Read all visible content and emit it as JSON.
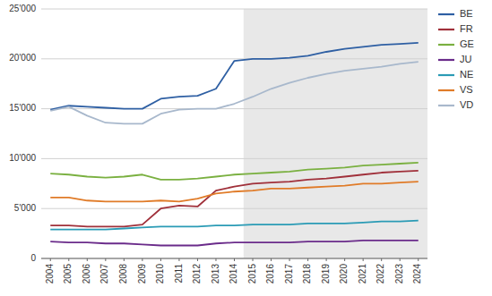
{
  "chart_data": {
    "type": "line",
    "x": [
      2004,
      2005,
      2006,
      2007,
      2008,
      2009,
      2010,
      2011,
      2012,
      2013,
      2014,
      2015,
      2016,
      2017,
      2018,
      2019,
      2020,
      2021,
      2022,
      2023,
      2024
    ],
    "series": [
      {
        "name": "BE",
        "color": "#2e5fa3",
        "values": [
          14900,
          15300,
          15200,
          15100,
          15000,
          15000,
          16000,
          16200,
          16300,
          17000,
          19800,
          20000,
          20000,
          20100,
          20300,
          20700,
          21000,
          21200,
          21400,
          21500,
          21600
        ]
      },
      {
        "name": "FR",
        "color": "#a0303a",
        "values": [
          3300,
          3300,
          3200,
          3200,
          3200,
          3400,
          5000,
          5300,
          5200,
          6800,
          7200,
          7500,
          7600,
          7700,
          7900,
          8000,
          8200,
          8400,
          8600,
          8700,
          8800
        ]
      },
      {
        "name": "GE",
        "color": "#7ab040",
        "values": [
          8500,
          8400,
          8200,
          8100,
          8200,
          8400,
          7900,
          7900,
          8000,
          8200,
          8400,
          8500,
          8600,
          8700,
          8900,
          9000,
          9100,
          9300,
          9400,
          9500,
          9600
        ]
      },
      {
        "name": "JU",
        "color": "#6a2b8a",
        "values": [
          1700,
          1600,
          1600,
          1500,
          1500,
          1400,
          1300,
          1300,
          1300,
          1500,
          1600,
          1600,
          1600,
          1600,
          1700,
          1700,
          1700,
          1800,
          1800,
          1800,
          1800
        ]
      },
      {
        "name": "NE",
        "color": "#2a9bb5",
        "values": [
          2900,
          2900,
          2900,
          2900,
          3000,
          3100,
          3200,
          3200,
          3200,
          3300,
          3300,
          3400,
          3400,
          3400,
          3500,
          3500,
          3500,
          3600,
          3700,
          3700,
          3800
        ]
      },
      {
        "name": "VS",
        "color": "#e07b28",
        "values": [
          6100,
          6100,
          5800,
          5700,
          5700,
          5700,
          5800,
          5700,
          6000,
          6500,
          6700,
          6800,
          7000,
          7000,
          7100,
          7200,
          7300,
          7500,
          7500,
          7600,
          7700
        ]
      },
      {
        "name": "VD",
        "color": "#a8b8cc",
        "values": [
          14800,
          15200,
          14300,
          13600,
          13500,
          13500,
          14500,
          14900,
          15000,
          15000,
          15500,
          16200,
          17000,
          17600,
          18100,
          18500,
          18800,
          19000,
          19200,
          19500,
          19700
        ]
      }
    ],
    "span": {
      "from": 2014.5,
      "to": 2024.5,
      "color": "#e8e8e8"
    },
    "xlim": [
      2003.5,
      2024.5
    ],
    "xticks": [
      2004,
      2005,
      2006,
      2007,
      2008,
      2009,
      2010,
      2011,
      2012,
      2013,
      2014,
      2015,
      2016,
      2017,
      2018,
      2019,
      2020,
      2021,
      2022,
      2023,
      2024
    ],
    "ylim": [
      0,
      25000
    ],
    "yticks": [
      0,
      {
        "value": 5000,
        "label": "5'000"
      },
      {
        "value": 10000,
        "label": "10'000"
      },
      {
        "value": 15000,
        "label": "15'000"
      },
      {
        "value": 20000,
        "label": "20'000"
      },
      {
        "value": 25000,
        "label": "25'000"
      }
    ],
    "grid": true,
    "legend": "right"
  }
}
